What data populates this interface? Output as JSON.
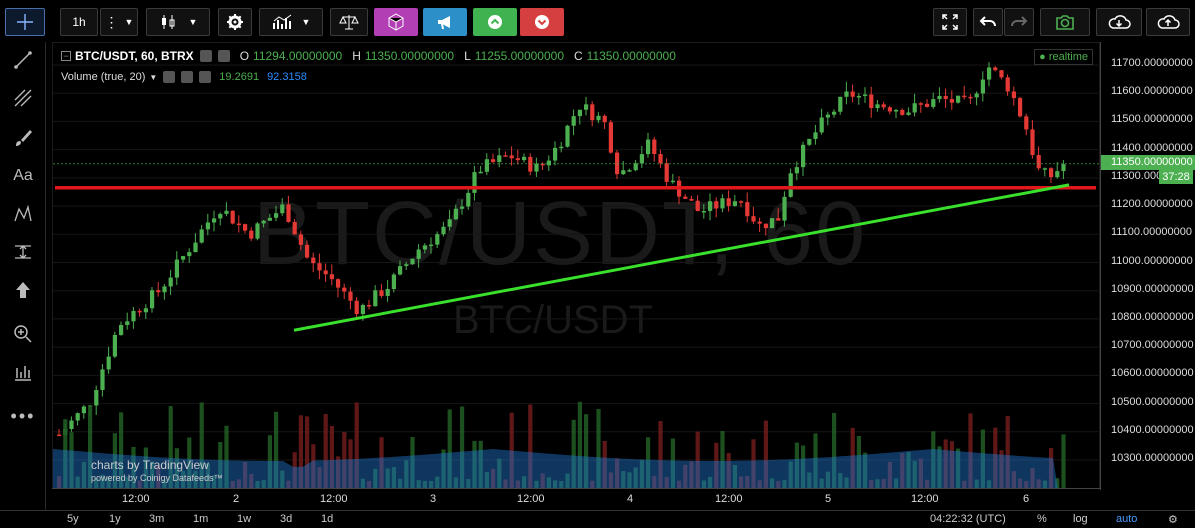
{
  "toolbar": {
    "interval": "1h",
    "buttons": [
      "crosshair",
      "interval",
      "more-vert",
      "candles",
      "indicators",
      "compare",
      "templates",
      "settings",
      "alert",
      "up",
      "down"
    ]
  },
  "header": {
    "symbol": "BTC/USDT, 60, BTRX",
    "o_label": "O",
    "o": "11294.00000000",
    "h_label": "H",
    "h": "11350.00000000",
    "l_label": "L",
    "l": "11255.00000000",
    "c_label": "C",
    "c": "11350.00000000",
    "realtime": "realtime"
  },
  "volume_legend": {
    "label": "Volume (true, 20)",
    "v1": "19.2691",
    "v2": "92.3158"
  },
  "watermark": {
    "big": "BTC/USDT, 60",
    "small": "BTC/USDT"
  },
  "logo": {
    "line1": "charts by TradingView",
    "line2": "powered by Coinigy Datafeeds™"
  },
  "price_axis": {
    "labels": [
      "11700.00000000",
      "11600.00000000",
      "11500.00000000",
      "11400.00000000",
      "11300.00000000",
      "11200.00000000",
      "11100.00000000",
      "11000.00000000",
      "10900.00000000",
      "10800.00000000",
      "10700.00000000",
      "10600.00000000",
      "10500.00000000",
      "10400.00000000",
      "10300.00000000"
    ],
    "current": "11350.00000000",
    "countdown": "37:28"
  },
  "time_axis": {
    "labels": [
      "12:00",
      "2",
      "12:00",
      "3",
      "12:00",
      "4",
      "12:00",
      "5",
      "12:00",
      "6"
    ]
  },
  "bottom": {
    "ranges": [
      "5y",
      "1y",
      "3m",
      "1m",
      "1w",
      "3d",
      "1d"
    ],
    "time": "04:22:32 (UTC)",
    "pct": "%",
    "log": "log",
    "auto": "auto"
  },
  "colors": {
    "up": "#4caf50",
    "down": "#e53935",
    "support_line": "#e0181c",
    "trend_line": "#39e02c",
    "volume_ma": "#1e78d2"
  },
  "chart_data": {
    "type": "candlestick",
    "price_range": [
      10230,
      11760
    ],
    "current_price": 11350,
    "support_level": 11265,
    "trend_line": {
      "from": {
        "x": "1 12:00",
        "y": 10760
      },
      "to": {
        "x": "6 08:00",
        "y": 11275
      }
    },
    "volume_series": {
      "name": "Volume (true, 20)",
      "values": [
        19.2691,
        92.3158
      ]
    }
  }
}
